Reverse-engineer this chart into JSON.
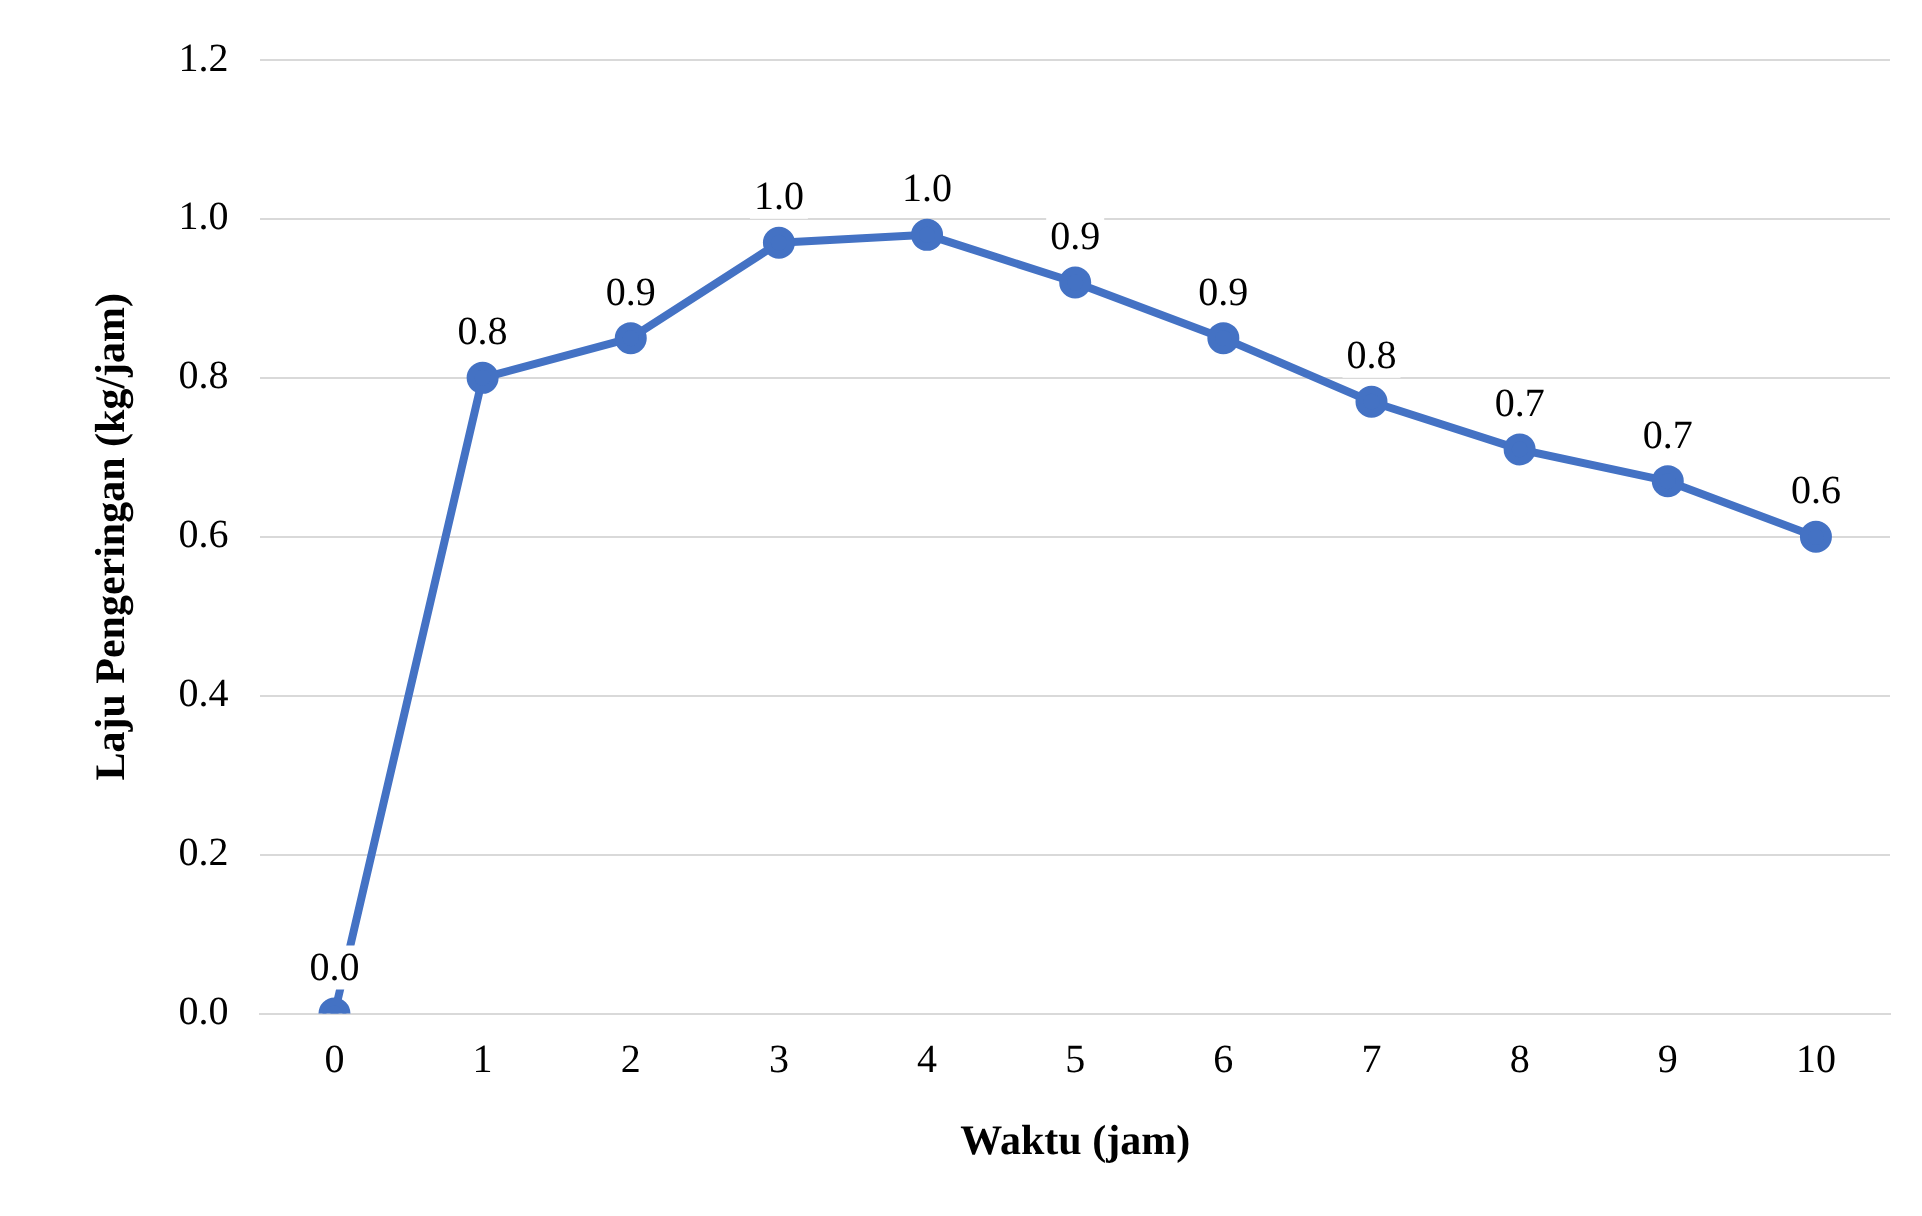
{
  "chart_data": {
    "type": "line",
    "xlabel": "Waktu (jam)",
    "ylabel": "Laju Pengeringan (kg/jam)",
    "categories": [
      "0",
      "1",
      "2",
      "3",
      "4",
      "5",
      "6",
      "7",
      "8",
      "9",
      "10"
    ],
    "series": [
      {
        "color": "#4472c4",
        "values": [
          0,
          0.8,
          0.85,
          0.97,
          0.98,
          0.92,
          0.85,
          0.77,
          0.71,
          0.67,
          0.6
        ],
        "value_labels": [
          "0.0",
          "0.8",
          "0.9",
          "1.0",
          "1.0",
          "0.9",
          "0.9",
          "0.8",
          "0.7",
          "0.7",
          "0.6"
        ]
      }
    ],
    "ylim": [
      0,
      1.2
    ],
    "yticks": [
      {
        "value": 0,
        "label": "0.0"
      },
      0.2,
      0.4,
      0.6,
      0.8,
      {
        "value": 1,
        "label": "1.0"
      },
      1.2
    ],
    "grid": "y",
    "legend": false,
    "marker": "circle",
    "line_style": "solid"
  }
}
